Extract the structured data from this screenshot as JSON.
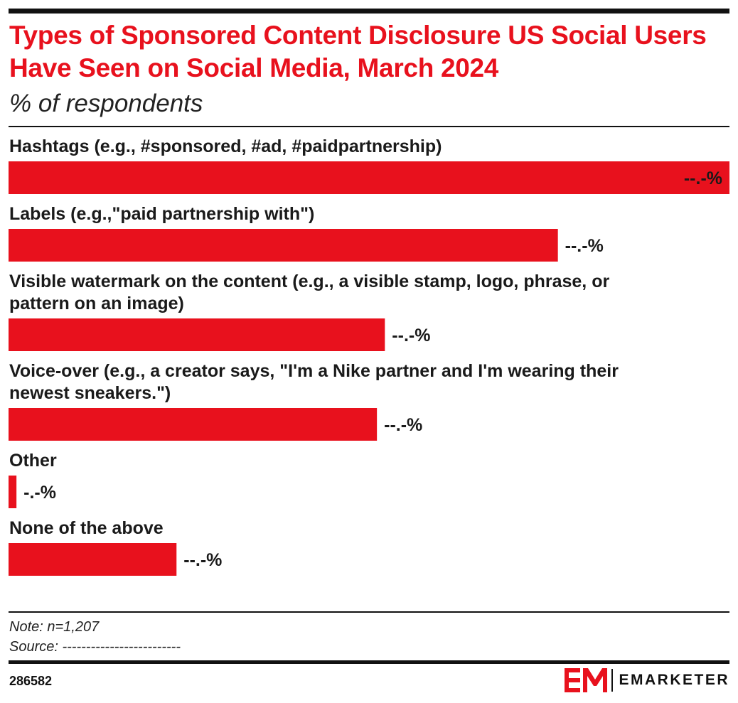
{
  "header": {
    "title": "Types of Sponsored Content Disclosure US Social Users Have Seen on Social Media, March 2024",
    "subtitle": "% of respondents"
  },
  "chart_data": {
    "type": "bar",
    "orientation": "horizontal",
    "categories": [
      "Hashtags (e.g., #sponsored, #ad, #paidpartnership)",
      "Labels (e.g.,\"paid partnership with\")",
      "Visible watermark on the content (e.g., a visible stamp, logo, phrase, or pattern on an image)",
      "Voice-over (e.g., a creator says, \"I'm a Nike partner and I'm wearing their newest sneakers.\")",
      "Other",
      "None of the above"
    ],
    "label_lines": [
      [
        "Hashtags (e.g., #sponsored, #ad, #paidpartnership)"
      ],
      [
        "Labels (e.g.,\"paid partnership with\")"
      ],
      [
        "Visible watermark on the content (e.g., a visible stamp, logo, phrase, or",
        "pattern on an image)"
      ],
      [
        "Voice-over (e.g., a creator says, \"I'm a Nike partner and I'm wearing their",
        "newest sneakers.\")"
      ],
      [
        "Other"
      ],
      [
        "None of the above"
      ]
    ],
    "values": [
      100,
      76.2,
      52.2,
      51.1,
      1.1,
      23.3
    ],
    "value_labels": [
      "--.-%",
      "--.-%",
      "--.-%",
      "--.-%",
      "-.-%",
      "--.-%"
    ],
    "xlim": [
      0,
      100
    ],
    "bar_color": "#e8111d",
    "grid": false,
    "legend": "none"
  },
  "footer": {
    "note": "Note: n=1,207",
    "source": "Source: -------------------------",
    "chart_id": "286582",
    "brand": "EMARKETER"
  },
  "colors": {
    "accent": "#e8111d",
    "text": "#1a1a1a"
  }
}
